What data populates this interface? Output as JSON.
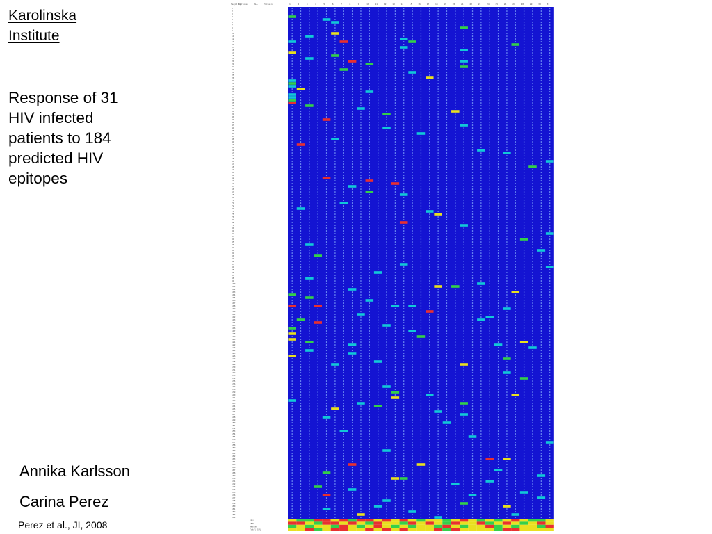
{
  "slide": {
    "institution": [
      "Karolinska",
      "Institute"
    ],
    "subtitle": [
      "Response of 31",
      "HIV infected",
      "patients to 184",
      "predicted HIV",
      "epitopes"
    ],
    "authors": [
      "Annika Karlsson",
      "Carina Perez"
    ],
    "citation": "Perez et al., JI, 2008"
  },
  "colors": {
    "grid_background": "#1414d2",
    "negative_dot": "#8ab4ff",
    "response_low": "#12c8d8",
    "response_medium": "#34d04a",
    "response_high": "#e8e020",
    "response_very_high": "#e83030",
    "slide_background": "#ffffff"
  },
  "chart_data": {
    "type": "heatmap",
    "header": {
      "id": "Seqid no",
      "epitope": "Epitope",
      "hla": "HLA",
      "protein": "Protein"
    },
    "patients": [
      "1",
      "2",
      "3",
      "4",
      "5",
      "6",
      "7",
      "8",
      "9",
      "10",
      "11",
      "12",
      "13",
      "14",
      "15",
      "16",
      "17",
      "18",
      "19",
      "20",
      "21",
      "22",
      "23",
      "24",
      "25",
      "26",
      "27",
      "28",
      "29",
      "30",
      "31"
    ],
    "epitope_count": 184,
    "footer_rows": [
      "SFU",
      "SEM",
      "Median",
      "Total SFU"
    ],
    "responses": [
      [
        4,
        1,
        2
      ],
      [
        5,
        5,
        1
      ],
      [
        6,
        6,
        1
      ],
      [
        8,
        21,
        2
      ],
      [
        10,
        6,
        3
      ],
      [
        11,
        3,
        1
      ],
      [
        12,
        14,
        1
      ],
      [
        13,
        1,
        1
      ],
      [
        13,
        7,
        4
      ],
      [
        13,
        15,
        2
      ],
      [
        14,
        27,
        2
      ],
      [
        15,
        14,
        1
      ],
      [
        16,
        21,
        1
      ],
      [
        17,
        1,
        3
      ],
      [
        18,
        6,
        2
      ],
      [
        19,
        3,
        1
      ],
      [
        20,
        8,
        4
      ],
      [
        20,
        21,
        1
      ],
      [
        21,
        10,
        2
      ],
      [
        22,
        21,
        2
      ],
      [
        23,
        7,
        2
      ],
      [
        24,
        15,
        1
      ],
      [
        26,
        17,
        3
      ],
      [
        27,
        1,
        1
      ],
      [
        28,
        1,
        2
      ],
      [
        29,
        1,
        1
      ],
      [
        30,
        2,
        3
      ],
      [
        31,
        10,
        1
      ],
      [
        32,
        1,
        1
      ],
      [
        33,
        1,
        1
      ],
      [
        34,
        1,
        2
      ],
      [
        35,
        1,
        4
      ],
      [
        36,
        3,
        2
      ],
      [
        37,
        9,
        1
      ],
      [
        38,
        20,
        3
      ],
      [
        39,
        12,
        2
      ],
      [
        41,
        5,
        4
      ],
      [
        43,
        21,
        1
      ],
      [
        44,
        12,
        1
      ],
      [
        46,
        16,
        1
      ],
      [
        48,
        6,
        1
      ],
      [
        50,
        2,
        4
      ],
      [
        52,
        23,
        1
      ],
      [
        53,
        26,
        1
      ],
      [
        56,
        31,
        1
      ],
      [
        58,
        29,
        2
      ],
      [
        62,
        5,
        4
      ],
      [
        63,
        10,
        4
      ],
      [
        64,
        13,
        4
      ],
      [
        65,
        8,
        1
      ],
      [
        67,
        10,
        2
      ],
      [
        68,
        14,
        1
      ],
      [
        71,
        7,
        1
      ],
      [
        73,
        2,
        1
      ],
      [
        74,
        17,
        1
      ],
      [
        75,
        18,
        3
      ],
      [
        78,
        14,
        4
      ],
      [
        79,
        21,
        1
      ],
      [
        82,
        31,
        1
      ],
      [
        84,
        28,
        2
      ],
      [
        86,
        3,
        1
      ],
      [
        88,
        30,
        1
      ],
      [
        90,
        4,
        2
      ],
      [
        93,
        14,
        1
      ],
      [
        94,
        31,
        1
      ],
      [
        96,
        11,
        1
      ],
      [
        98,
        3,
        1
      ],
      [
        100,
        23,
        1
      ],
      [
        101,
        18,
        3
      ],
      [
        101,
        20,
        2
      ],
      [
        102,
        8,
        1
      ],
      [
        103,
        27,
        3
      ],
      [
        104,
        1,
        2
      ],
      [
        105,
        3,
        2
      ],
      [
        106,
        10,
        1
      ],
      [
        108,
        1,
        4
      ],
      [
        108,
        4,
        4
      ],
      [
        108,
        13,
        1
      ],
      [
        108,
        15,
        1
      ],
      [
        109,
        26,
        1
      ],
      [
        110,
        17,
        4
      ],
      [
        111,
        9,
        1
      ],
      [
        112,
        24,
        1
      ],
      [
        113,
        2,
        2
      ],
      [
        113,
        23,
        1
      ],
      [
        114,
        4,
        4
      ],
      [
        115,
        12,
        1
      ],
      [
        116,
        1,
        2
      ],
      [
        117,
        15,
        1
      ],
      [
        118,
        1,
        3
      ],
      [
        119,
        16,
        2
      ],
      [
        120,
        1,
        3
      ],
      [
        121,
        3,
        2
      ],
      [
        121,
        28,
        3
      ],
      [
        122,
        8,
        1
      ],
      [
        122,
        25,
        1
      ],
      [
        123,
        29,
        1
      ],
      [
        124,
        3,
        1
      ],
      [
        125,
        8,
        1
      ],
      [
        126,
        1,
        3
      ],
      [
        127,
        26,
        2
      ],
      [
        128,
        11,
        1
      ],
      [
        129,
        6,
        1
      ],
      [
        129,
        21,
        3
      ],
      [
        132,
        26,
        1
      ],
      [
        134,
        28,
        2
      ],
      [
        137,
        12,
        1
      ],
      [
        139,
        13,
        2
      ],
      [
        140,
        17,
        1
      ],
      [
        140,
        27,
        3
      ],
      [
        141,
        13,
        3
      ],
      [
        142,
        1,
        1
      ],
      [
        143,
        9,
        1
      ],
      [
        143,
        21,
        2
      ],
      [
        144,
        11,
        2
      ],
      [
        145,
        6,
        3
      ],
      [
        146,
        18,
        1
      ],
      [
        147,
        21,
        1
      ],
      [
        148,
        5,
        1
      ],
      [
        150,
        19,
        1
      ],
      [
        153,
        7,
        1
      ],
      [
        155,
        22,
        1
      ],
      [
        157,
        31,
        1
      ],
      [
        160,
        12,
        1
      ],
      [
        163,
        24,
        4
      ],
      [
        163,
        26,
        3
      ],
      [
        165,
        8,
        4
      ],
      [
        165,
        16,
        3
      ],
      [
        167,
        25,
        1
      ],
      [
        168,
        5,
        2
      ],
      [
        169,
        30,
        1
      ],
      [
        170,
        13,
        3
      ],
      [
        170,
        14,
        2
      ],
      [
        171,
        24,
        1
      ],
      [
        172,
        20,
        1
      ],
      [
        173,
        4,
        2
      ],
      [
        174,
        8,
        1
      ],
      [
        175,
        28,
        1
      ],
      [
        176,
        5,
        4
      ],
      [
        176,
        22,
        1
      ],
      [
        177,
        30,
        1
      ],
      [
        178,
        12,
        1
      ],
      [
        179,
        21,
        2
      ],
      [
        180,
        11,
        1
      ],
      [
        180,
        26,
        3
      ],
      [
        181,
        5,
        1
      ],
      [
        182,
        15,
        1
      ],
      [
        183,
        27,
        1
      ],
      [
        183,
        9,
        3
      ],
      [
        184,
        18,
        1
      ]
    ],
    "totals": [
      [
        3,
        2,
        2,
        4,
        4,
        3,
        4,
        2,
        4,
        4,
        3,
        4,
        3,
        4,
        3,
        2,
        3,
        3,
        2,
        3,
        4,
        3,
        2,
        3,
        2,
        3,
        4,
        3,
        2,
        2,
        3
      ],
      [
        4,
        4,
        3,
        2,
        4,
        4,
        3,
        4,
        3,
        2,
        4,
        3,
        3,
        2,
        4,
        3,
        4,
        3,
        2,
        4,
        3,
        3,
        4,
        2,
        3,
        4,
        3,
        2,
        3,
        4,
        3
      ],
      [
        2,
        3,
        2,
        3,
        3,
        2,
        4,
        3,
        2,
        3,
        4,
        3,
        2,
        3,
        2,
        3,
        3,
        2,
        4,
        3,
        2,
        3,
        3,
        4,
        2,
        3,
        2,
        3,
        3,
        2,
        4
      ],
      [
        3,
        3,
        4,
        2,
        3,
        4,
        4,
        3,
        3,
        4,
        3,
        4,
        3,
        4,
        3,
        3,
        3,
        4,
        2,
        4,
        3,
        3,
        3,
        3,
        2,
        4,
        4,
        3,
        3,
        3,
        3
      ]
    ]
  }
}
